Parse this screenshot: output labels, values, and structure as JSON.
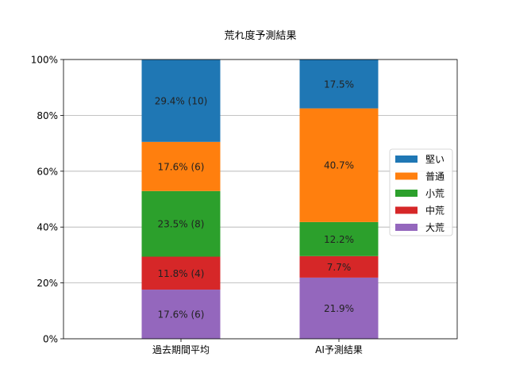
{
  "chart_data": {
    "type": "bar",
    "stacked": true,
    "title": "荒れ度予測結果",
    "xlabel": "",
    "ylabel": "",
    "categories": [
      "過去期間平均",
      "AI予測結果"
    ],
    "ylim": [
      0,
      100
    ],
    "yticks": [
      0,
      20,
      40,
      60,
      80,
      100
    ],
    "ytick_labels": [
      "0%",
      "20%",
      "40%",
      "60%",
      "80%",
      "100%"
    ],
    "grid": "y",
    "legend_placement": "center-right",
    "series": [
      {
        "name": "大荒",
        "color": "#9467bd",
        "values": [
          17.6,
          21.9
        ],
        "labels": [
          "17.6% (6)",
          "21.9%"
        ]
      },
      {
        "name": "中荒",
        "color": "#d62728",
        "values": [
          11.8,
          7.7
        ],
        "labels": [
          "11.8% (4)",
          "7.7%"
        ]
      },
      {
        "name": "小荒",
        "color": "#2ca02c",
        "values": [
          23.5,
          12.2
        ],
        "labels": [
          "23.5% (8)",
          "12.2%"
        ]
      },
      {
        "name": "普通",
        "color": "#ff7f0e",
        "values": [
          17.6,
          40.7
        ],
        "labels": [
          "17.6% (6)",
          "40.7%"
        ]
      },
      {
        "name": "堅い",
        "color": "#1f77b4",
        "values": [
          29.4,
          17.5
        ],
        "labels": [
          "29.4% (10)",
          "17.5%"
        ]
      }
    ],
    "legend_order": [
      "堅い",
      "普通",
      "小荒",
      "中荒",
      "大荒"
    ]
  }
}
